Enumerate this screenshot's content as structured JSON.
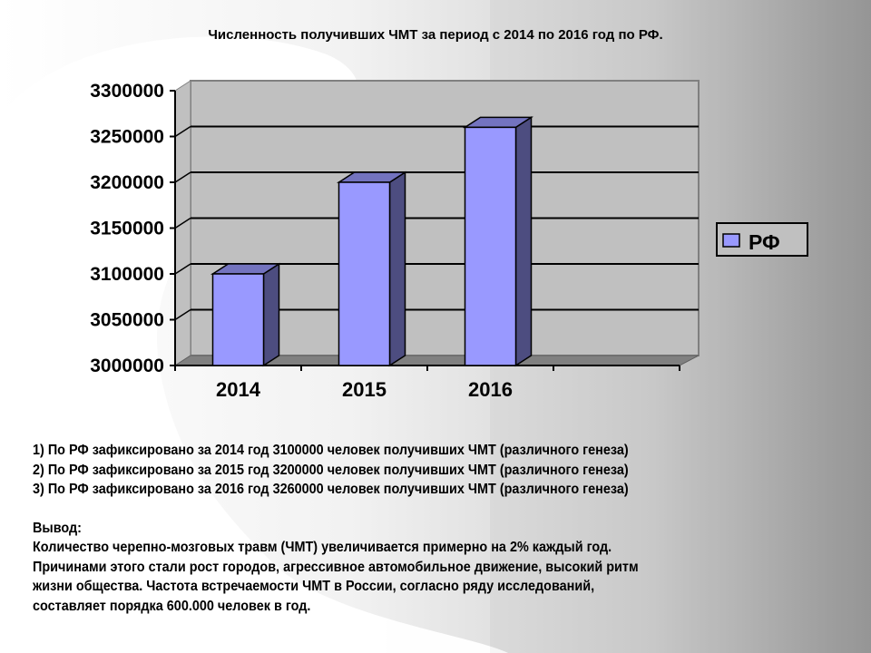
{
  "chart_data": {
    "type": "bar",
    "title": "Численность получивших ЧМТ за период  с 2014 по 2016 год по РФ.",
    "categories": [
      "2014",
      "2015",
      "2016"
    ],
    "series": [
      {
        "name": "РФ",
        "values": [
          3100000,
          3200000,
          3260000
        ],
        "color": "#9999ff"
      }
    ],
    "ylim": [
      3000000,
      3300000
    ],
    "yticks": [
      "3000000",
      "3050000",
      "3100000",
      "3150000",
      "3200000",
      "3250000",
      "3300000"
    ],
    "grid": true,
    "legend": "right",
    "three_d": true
  },
  "notes": {
    "lines": [
      "1) По РФ зафиксировано за 2014 год 3100000 человек получивших ЧМТ (различного генеза)",
      "2) По РФ зафиксировано за 2015 год 3200000 человек получивших ЧМТ (различного генеза)",
      "3) По РФ зафиксировано за 2016 год 3260000 человек получивших ЧМТ (различного генеза)"
    ],
    "conclusion_label": "Вывод:",
    "conclusion": [
      "Количество черепно-мозговых травм (ЧМТ) увеличивается примерно на 2% каждый год.",
      " Причинами этого стали рост городов, агрессивное автомобильное движение, высокий ритм",
      "жизни общества. Частота встречаемости ЧМТ в России, согласно ряду исследований,",
      "составляет порядка 600.000 человек в год."
    ]
  }
}
